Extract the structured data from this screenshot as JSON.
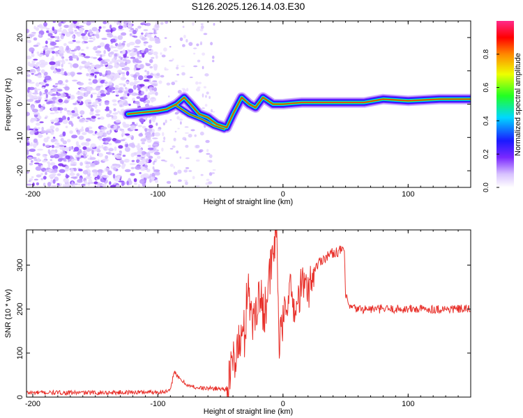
{
  "title": "S126.2025.126.14.03.E30",
  "chart_data": [
    {
      "type": "heatmap",
      "xlabel": "Height of straight line (km)",
      "ylabel": "Frequency (Hz)",
      "xlim": [
        -205,
        150
      ],
      "ylim": [
        -25,
        25
      ],
      "xticks": [
        -200,
        -100,
        0,
        100
      ],
      "yticks": [
        -20,
        -10,
        0,
        10,
        20
      ],
      "colorbar": {
        "label": "Normalized spectral amplitude",
        "range": [
          0,
          1
        ],
        "ticks": [
          0.0,
          0.2,
          0.4,
          0.6,
          0.8
        ]
      },
      "noise_region_x": [
        -205,
        -100
      ],
      "scatter_region_x": [
        -100,
        -55
      ],
      "signal_trace": [
        {
          "x": -124,
          "y": -3
        },
        {
          "x": -113,
          "y": -2.5
        },
        {
          "x": -100,
          "y": -2
        },
        {
          "x": -93,
          "y": -1.5
        },
        {
          "x": -85,
          "y": 0
        },
        {
          "x": -79,
          "y": 2
        },
        {
          "x": -74,
          "y": 0
        },
        {
          "x": -67,
          "y": -3
        },
        {
          "x": -60,
          "y": -4
        },
        {
          "x": -53,
          "y": -6
        },
        {
          "x": -45,
          "y": -7
        },
        {
          "x": -40,
          "y": -3
        },
        {
          "x": -33,
          "y": 2
        },
        {
          "x": -27,
          "y": 0
        },
        {
          "x": -22,
          "y": -1
        },
        {
          "x": -16,
          "y": 2
        },
        {
          "x": -8,
          "y": 0
        },
        {
          "x": 0,
          "y": 0
        },
        {
          "x": 15,
          "y": 0.5
        },
        {
          "x": 40,
          "y": 0.5
        },
        {
          "x": 65,
          "y": 0.5
        },
        {
          "x": 80,
          "y": 1.5
        },
        {
          "x": 100,
          "y": 1
        },
        {
          "x": 125,
          "y": 1.5
        },
        {
          "x": 150,
          "y": 1.5
        }
      ],
      "secondary_trace": [
        {
          "x": -85,
          "y": -0.5
        },
        {
          "x": -75,
          "y": -3
        },
        {
          "x": -65,
          "y": -4.5
        },
        {
          "x": -55,
          "y": -6.5
        },
        {
          "x": -47,
          "y": -7.5
        }
      ]
    },
    {
      "type": "line",
      "xlabel": "Height of straight line (km)",
      "ylabel": "SNR (10 * v/v)",
      "xlim": [
        -205,
        150
      ],
      "ylim": [
        0,
        380
      ],
      "xticks": [
        -200,
        -100,
        0,
        100
      ],
      "yticks": [
        0,
        100,
        200,
        300
      ],
      "series": [
        {
          "color": "#e8302a",
          "points": [
            {
              "x": -205,
              "y": 10
            },
            {
              "x": -180,
              "y": 10
            },
            {
              "x": -150,
              "y": 10
            },
            {
              "x": -120,
              "y": 11
            },
            {
              "x": -95,
              "y": 12
            },
            {
              "x": -90,
              "y": 14
            },
            {
              "x": -87,
              "y": 60
            },
            {
              "x": -84,
              "y": 45
            },
            {
              "x": -80,
              "y": 35
            },
            {
              "x": -75,
              "y": 25
            },
            {
              "x": -65,
              "y": 20
            },
            {
              "x": -55,
              "y": 20
            },
            {
              "x": -45,
              "y": 18
            },
            {
              "x": -42,
              "y": 40
            },
            {
              "x": -40,
              "y": 80
            },
            {
              "x": -35,
              "y": 120
            },
            {
              "x": -30,
              "y": 150
            },
            {
              "x": -28,
              "y": 290
            },
            {
              "x": -25,
              "y": 160
            },
            {
              "x": -20,
              "y": 230
            },
            {
              "x": -15,
              "y": 200
            },
            {
              "x": -10,
              "y": 280
            },
            {
              "x": -5,
              "y": 380
            },
            {
              "x": -3,
              "y": 120
            },
            {
              "x": 0,
              "y": 170
            },
            {
              "x": 5,
              "y": 250
            },
            {
              "x": 10,
              "y": 190
            },
            {
              "x": 15,
              "y": 260
            },
            {
              "x": 20,
              "y": 240
            },
            {
              "x": 25,
              "y": 290
            },
            {
              "x": 30,
              "y": 310
            },
            {
              "x": 35,
              "y": 320
            },
            {
              "x": 40,
              "y": 328
            },
            {
              "x": 45,
              "y": 332
            },
            {
              "x": 49,
              "y": 335
            },
            {
              "x": 50,
              "y": 230
            },
            {
              "x": 53,
              "y": 205
            },
            {
              "x": 60,
              "y": 200
            },
            {
              "x": 80,
              "y": 200
            },
            {
              "x": 100,
              "y": 200
            },
            {
              "x": 120,
              "y": 200
            },
            {
              "x": 150,
              "y": 200
            }
          ]
        }
      ]
    }
  ]
}
